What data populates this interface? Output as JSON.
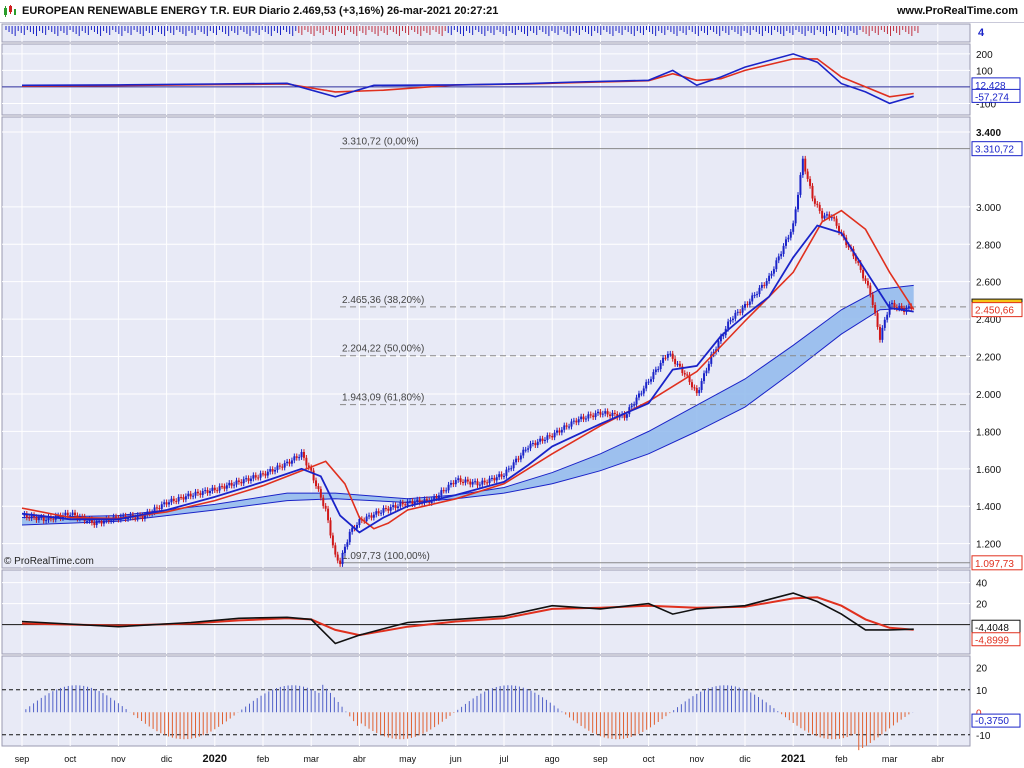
{
  "header": {
    "title": "EUROPEAN RENEWABLE ENERGY T.R. EUR Diario 2.469,53 (+3,16%) 26-mar-2021 20:27:21",
    "site": "www.ProRealTime.com",
    "watermark": "© ProRealTime.com",
    "panel_badge": "4"
  },
  "colors": {
    "panel_bg": "#e8eaf6",
    "grid": "#ffffff",
    "blue": "#1a23c8",
    "red": "#e0301e",
    "band_fill": "#8fb8ec",
    "candle_up": "#1a23c8",
    "candle_down": "#d01818",
    "label_red_bg": "#ffffff",
    "label_yellow_bg": "#f5c518"
  },
  "chart_data": [
    {
      "type": "bar",
      "name": "volume-strip",
      "axis_label": "4"
    },
    {
      "type": "line",
      "name": "upper-oscillator",
      "y_ticks": [
        "200",
        "100",
        "0",
        "-100"
      ],
      "value_labels": [
        {
          "text": "12,428",
          "color": "blue"
        },
        {
          "text": "-57,274",
          "color": "blue"
        }
      ],
      "y_values": {
        "tick_values": [
          200,
          100,
          0,
          -100
        ],
        "last_blue": 12.428,
        "last_red": -57.274
      },
      "ylim": [
        -170,
        260
      ]
    },
    {
      "type": "line",
      "name": "price",
      "y_ticks": [
        "3.400",
        "3.000",
        "2.800",
        "2.600",
        "2.400",
        "2.200",
        "2.000",
        "1.800",
        "1.600",
        "1.400",
        "1.200"
      ],
      "ylim": [
        1.07,
        3.48
      ],
      "x_ticks": [
        "sep",
        "oct",
        "nov",
        "dic",
        "2020",
        "feb",
        "mar",
        "abr",
        "may",
        "jun",
        "jul",
        "ago",
        "sep",
        "oct",
        "nov",
        "dic",
        "2021",
        "feb",
        "mar",
        "abr"
      ],
      "fib_levels": [
        {
          "label": "3.310,72 (0,00%)",
          "value": 3.31072
        },
        {
          "label": "2.465,36 (38,20%)",
          "value": 2.46536
        },
        {
          "label": "2.204,22 (50,00%)",
          "value": 2.20422
        },
        {
          "label": "1.943,09 (61,80%)",
          "value": 1.94309
        },
        {
          "label": "1.097,73 (100,00%)",
          "value": 1.09773
        }
      ],
      "price_labels": [
        {
          "text": "3.310,72",
          "value": 3.31072,
          "style": "blue"
        },
        {
          "text": "2.469,53",
          "value": 2.46953,
          "style": "yellow"
        },
        {
          "text": "2.450,66",
          "value": 2.45066,
          "style": "red"
        },
        {
          "text": "1.097,73",
          "value": 1.09773,
          "style": "red"
        }
      ],
      "close_series": [
        {
          "m": 0,
          "v": 1.35
        },
        {
          "m": 0.5,
          "v": 1.33
        },
        {
          "m": 1,
          "v": 1.36
        },
        {
          "m": 1.5,
          "v": 1.31
        },
        {
          "m": 2,
          "v": 1.34
        },
        {
          "m": 2.5,
          "v": 1.345
        },
        {
          "m": 3,
          "v": 1.42
        },
        {
          "m": 3.5,
          "v": 1.46
        },
        {
          "m": 4,
          "v": 1.49
        },
        {
          "m": 4.5,
          "v": 1.53
        },
        {
          "m": 5,
          "v": 1.57
        },
        {
          "m": 5.5,
          "v": 1.63
        },
        {
          "m": 5.8,
          "v": 1.68
        },
        {
          "m": 6,
          "v": 1.58
        },
        {
          "m": 6.3,
          "v": 1.38
        },
        {
          "m": 6.5,
          "v": 1.13
        },
        {
          "m": 6.6,
          "v": 1.1
        },
        {
          "m": 6.8,
          "v": 1.26
        },
        {
          "m": 7,
          "v": 1.32
        },
        {
          "m": 7.5,
          "v": 1.38
        },
        {
          "m": 8,
          "v": 1.42
        },
        {
          "m": 8.5,
          "v": 1.43
        },
        {
          "m": 9,
          "v": 1.54
        },
        {
          "m": 9.5,
          "v": 1.52
        },
        {
          "m": 10,
          "v": 1.57
        },
        {
          "m": 10.5,
          "v": 1.72
        },
        {
          "m": 11,
          "v": 1.78
        },
        {
          "m": 11.5,
          "v": 1.86
        },
        {
          "m": 12,
          "v": 1.9
        },
        {
          "m": 12.5,
          "v": 1.88
        },
        {
          "m": 13,
          "v": 2.07
        },
        {
          "m": 13.4,
          "v": 2.22
        },
        {
          "m": 13.8,
          "v": 2.09
        },
        {
          "m": 14,
          "v": 2.0
        },
        {
          "m": 14.3,
          "v": 2.2
        },
        {
          "m": 14.7,
          "v": 2.4
        },
        {
          "m": 15,
          "v": 2.47
        },
        {
          "m": 15.5,
          "v": 2.62
        },
        {
          "m": 16,
          "v": 2.9
        },
        {
          "m": 16.2,
          "v": 3.25
        },
        {
          "m": 16.4,
          "v": 3.05
        },
        {
          "m": 16.6,
          "v": 2.95
        },
        {
          "m": 16.8,
          "v": 2.95
        },
        {
          "m": 17,
          "v": 2.85
        },
        {
          "m": 17.3,
          "v": 2.72
        },
        {
          "m": 17.6,
          "v": 2.54
        },
        {
          "m": 17.8,
          "v": 2.3
        },
        {
          "m": 18,
          "v": 2.48
        },
        {
          "m": 18.3,
          "v": 2.45
        },
        {
          "m": 18.5,
          "v": 2.469
        }
      ],
      "ma_fast": [
        {
          "m": 0,
          "v": 1.36
        },
        {
          "m": 1,
          "v": 1.33
        },
        {
          "m": 2,
          "v": 1.33
        },
        {
          "m": 3,
          "v": 1.38
        },
        {
          "m": 4,
          "v": 1.45
        },
        {
          "m": 5,
          "v": 1.53
        },
        {
          "m": 5.8,
          "v": 1.6
        },
        {
          "m": 6.2,
          "v": 1.56
        },
        {
          "m": 6.6,
          "v": 1.35
        },
        {
          "m": 7,
          "v": 1.26
        },
        {
          "m": 7.5,
          "v": 1.34
        },
        {
          "m": 8,
          "v": 1.4
        },
        {
          "m": 9,
          "v": 1.46
        },
        {
          "m": 10,
          "v": 1.53
        },
        {
          "m": 10.5,
          "v": 1.62
        },
        {
          "m": 11,
          "v": 1.72
        },
        {
          "m": 12,
          "v": 1.84
        },
        {
          "m": 13,
          "v": 1.95
        },
        {
          "m": 13.5,
          "v": 2.13
        },
        {
          "m": 14,
          "v": 2.15
        },
        {
          "m": 14.5,
          "v": 2.31
        },
        {
          "m": 15,
          "v": 2.42
        },
        {
          "m": 15.5,
          "v": 2.52
        },
        {
          "m": 16,
          "v": 2.73
        },
        {
          "m": 16.5,
          "v": 2.9
        },
        {
          "m": 17,
          "v": 2.86
        },
        {
          "m": 17.5,
          "v": 2.66
        },
        {
          "m": 18,
          "v": 2.46
        },
        {
          "m": 18.5,
          "v": 2.44
        }
      ],
      "ma_red": [
        {
          "m": 0,
          "v": 1.39
        },
        {
          "m": 1,
          "v": 1.34
        },
        {
          "m": 2,
          "v": 1.335
        },
        {
          "m": 3,
          "v": 1.37
        },
        {
          "m": 4,
          "v": 1.43
        },
        {
          "m": 5,
          "v": 1.51
        },
        {
          "m": 5.8,
          "v": 1.59
        },
        {
          "m": 6.3,
          "v": 1.64
        },
        {
          "m": 6.7,
          "v": 1.52
        },
        {
          "m": 7,
          "v": 1.34
        },
        {
          "m": 7.3,
          "v": 1.28
        },
        {
          "m": 7.6,
          "v": 1.31
        },
        {
          "m": 8,
          "v": 1.38
        },
        {
          "m": 9,
          "v": 1.44
        },
        {
          "m": 10,
          "v": 1.52
        },
        {
          "m": 11,
          "v": 1.68
        },
        {
          "m": 12,
          "v": 1.83
        },
        {
          "m": 13,
          "v": 1.96
        },
        {
          "m": 14,
          "v": 2.12
        },
        {
          "m": 15,
          "v": 2.39
        },
        {
          "m": 16,
          "v": 2.65
        },
        {
          "m": 16.6,
          "v": 2.92
        },
        {
          "m": 17,
          "v": 2.98
        },
        {
          "m": 17.5,
          "v": 2.88
        },
        {
          "m": 18,
          "v": 2.65
        },
        {
          "m": 18.5,
          "v": 2.451
        }
      ],
      "band_upper": [
        {
          "m": 0,
          "v": 1.34
        },
        {
          "m": 2,
          "v": 1.35
        },
        {
          "m": 4,
          "v": 1.41
        },
        {
          "m": 5.5,
          "v": 1.47
        },
        {
          "m": 6.5,
          "v": 1.47
        },
        {
          "m": 8,
          "v": 1.44
        },
        {
          "m": 9,
          "v": 1.46
        },
        {
          "m": 10,
          "v": 1.5
        },
        {
          "m": 11,
          "v": 1.58
        },
        {
          "m": 12,
          "v": 1.68
        },
        {
          "m": 13,
          "v": 1.8
        },
        {
          "m": 14,
          "v": 1.94
        },
        {
          "m": 15,
          "v": 2.08
        },
        {
          "m": 16,
          "v": 2.26
        },
        {
          "m": 17,
          "v": 2.45
        },
        {
          "m": 17.8,
          "v": 2.56
        },
        {
          "m": 18.5,
          "v": 2.58
        }
      ],
      "band_lower": [
        {
          "m": 0,
          "v": 1.3
        },
        {
          "m": 2,
          "v": 1.32
        },
        {
          "m": 4,
          "v": 1.38
        },
        {
          "m": 5.5,
          "v": 1.43
        },
        {
          "m": 6.5,
          "v": 1.44
        },
        {
          "m": 8,
          "v": 1.42
        },
        {
          "m": 9,
          "v": 1.44
        },
        {
          "m": 10,
          "v": 1.47
        },
        {
          "m": 11,
          "v": 1.52
        },
        {
          "m": 12,
          "v": 1.59
        },
        {
          "m": 13,
          "v": 1.68
        },
        {
          "m": 14,
          "v": 1.8
        },
        {
          "m": 15,
          "v": 1.93
        },
        {
          "m": 16,
          "v": 2.12
        },
        {
          "m": 17,
          "v": 2.32
        },
        {
          "m": 17.8,
          "v": 2.45
        },
        {
          "m": 18.5,
          "v": 2.46
        }
      ]
    },
    {
      "type": "area",
      "name": "lower-oscillator-1",
      "y_ticks": [
        "40",
        "20",
        "0"
      ],
      "value_labels": [
        {
          "text": "-4,4048",
          "color": "black"
        },
        {
          "text": "-4,8999",
          "color": "red"
        }
      ],
      "last_values": {
        "black": -4.4048,
        "red": -4.8999
      },
      "ylim": [
        -28,
        52
      ]
    },
    {
      "type": "bar",
      "name": "lower-oscillator-2",
      "y_ticks": [
        "20",
        "10",
        "0",
        "-10"
      ],
      "value_labels": [
        {
          "text": "-0,3750",
          "color": "blue"
        }
      ],
      "last_value": -0.375,
      "ylim": [
        -15,
        25
      ],
      "dashed_levels": [
        10,
        -10
      ]
    }
  ]
}
